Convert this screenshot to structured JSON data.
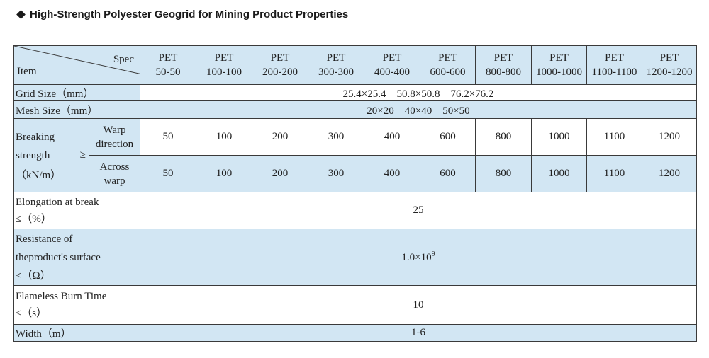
{
  "title": "High-Strength Polyester Geogrid for Mining Product Properties",
  "header": {
    "spec": "Spec",
    "item": "Item",
    "columns": [
      {
        "line1": "PET",
        "line2": "50-50"
      },
      {
        "line1": "PET",
        "line2": "100-100"
      },
      {
        "line1": "PET",
        "line2": "200-200"
      },
      {
        "line1": "PET",
        "line2": "300-300"
      },
      {
        "line1": "PET",
        "line2": "400-400"
      },
      {
        "line1": "PET",
        "line2": "600-600"
      },
      {
        "line1": "PET",
        "line2": "800-800"
      },
      {
        "line1": "PET",
        "line2": "1000-1000"
      },
      {
        "line1": "PET",
        "line2": "1100-1100"
      },
      {
        "line1": "PET",
        "line2": "1200-1200"
      }
    ]
  },
  "grid_size": {
    "label": "Grid Size（mm）",
    "value": "25.4×25.4　50.8×50.8　76.2×76.2"
  },
  "mesh_size": {
    "label": "Mesh Size（mm）",
    "value": "20×20　40×40　50×50"
  },
  "breaking": {
    "label1": "Breaking",
    "label2": "strength",
    "label3": "（kN/m）",
    "ge": "≥",
    "warp_line1": "Warp",
    "warp_line2": "direction",
    "across_line1": "Across",
    "across_line2": "warp",
    "warp_values": [
      "50",
      "100",
      "200",
      "300",
      "400",
      "600",
      "800",
      "1000",
      "1100",
      "1200"
    ],
    "across_values": [
      "50",
      "100",
      "200",
      "300",
      "400",
      "600",
      "800",
      "1000",
      "1100",
      "1200"
    ]
  },
  "elongation": {
    "line1": "Elongation at break",
    "line2": "≤（%）",
    "value": "25"
  },
  "resistance": {
    "line1": "Resistance of",
    "line2": "theproduct's surface",
    "line3": "<（Ω）",
    "value_base": "1.0×10",
    "value_exp": "9"
  },
  "flameless": {
    "line1": "Flameless Burn Time",
    "line2": "≤（s）",
    "value": "10"
  },
  "width": {
    "label": "Width（m）",
    "value": "1-6"
  }
}
